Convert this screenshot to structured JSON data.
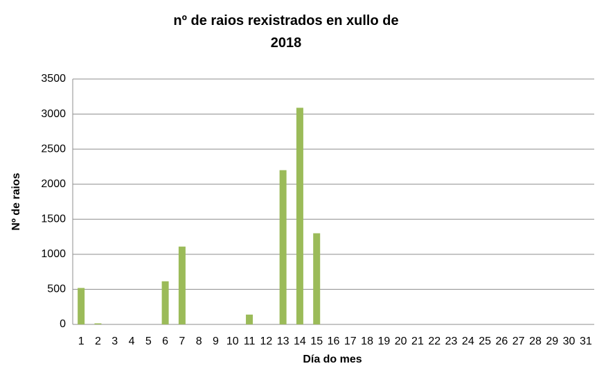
{
  "chart_data": {
    "type": "bar",
    "title": "nº de raios rexistrados en xullo de 2018",
    "x_label": "Día do mes",
    "y_label": "Nº de raios",
    "categories": [
      "1",
      "2",
      "3",
      "4",
      "5",
      "6",
      "7",
      "8",
      "9",
      "10",
      "11",
      "12",
      "13",
      "14",
      "15",
      "16",
      "17",
      "18",
      "19",
      "20",
      "21",
      "22",
      "23",
      "24",
      "25",
      "26",
      "27",
      "28",
      "29",
      "30",
      "31"
    ],
    "values": [
      520,
      15,
      0,
      0,
      0,
      615,
      1110,
      0,
      0,
      0,
      140,
      0,
      2200,
      3090,
      1300,
      0,
      0,
      0,
      0,
      0,
      0,
      0,
      0,
      0,
      0,
      0,
      0,
      0,
      0,
      0,
      0
    ],
    "color": "#9bbb59",
    "ylim": [
      0,
      3500
    ],
    "yticks": [
      0,
      500,
      1000,
      1500,
      2000,
      2500,
      3000,
      3500
    ],
    "grid": true
  }
}
